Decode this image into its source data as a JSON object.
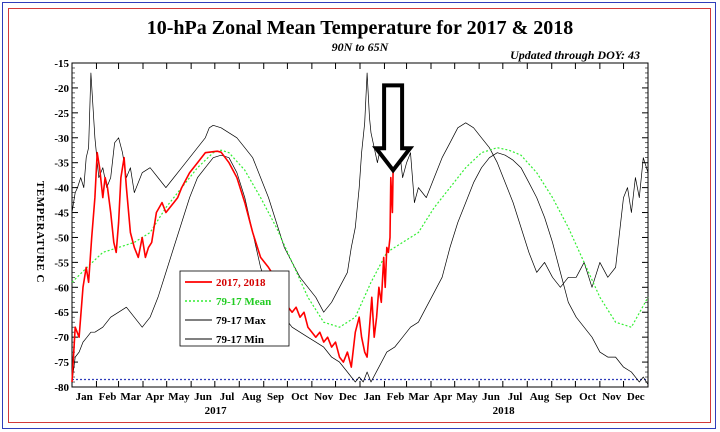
{
  "chart_data": {
    "type": "line",
    "title": "10-hPa Zonal Mean Temperature for 2017 & 2018",
    "subtitle": "90N to 65N",
    "update_note": "Updated through DOY:  43",
    "ylabel": "TEMPERATURE C",
    "ylim": [
      -80,
      -15
    ],
    "yticks": [
      -15,
      -20,
      -25,
      -30,
      -35,
      -40,
      -45,
      -50,
      -55,
      -60,
      -65,
      -70,
      -75,
      -80
    ],
    "xlim": [
      1,
      731
    ],
    "month_labels": [
      "Jan",
      "Feb",
      "Mar",
      "Apr",
      "May",
      "Jun",
      "Jul",
      "Aug",
      "Sep",
      "Oct",
      "Nov",
      "Dec",
      "Jan",
      "Feb",
      "Mar",
      "Apr",
      "May",
      "Jun",
      "Jul",
      "Aug",
      "Sep",
      "Oct",
      "Nov",
      "Dec"
    ],
    "year_labels": [
      {
        "text": "2017",
        "x": 183
      },
      {
        "text": "2018",
        "x": 548
      }
    ],
    "reference_line": -78.5,
    "annotation": {
      "shape": "down-arrow",
      "x": 408,
      "y_top": -19.5,
      "y_tip": -36.5
    },
    "legend": {
      "position": "lower-left"
    },
    "series": [
      {
        "name": "2017, 2018",
        "color": "#ff0000",
        "x": [
          1,
          5,
          10,
          15,
          19,
          22,
          26,
          30,
          33,
          36,
          40,
          43,
          46,
          50,
          54,
          57,
          60,
          63,
          67,
          70,
          75,
          80,
          85,
          90,
          94,
          98,
          102,
          108,
          115,
          120,
          125,
          130,
          135,
          140,
          150,
          160,
          170,
          180,
          185,
          190,
          200,
          210,
          220,
          230,
          240,
          250,
          258,
          265,
          270,
          275,
          280,
          285,
          290,
          295,
          300,
          305,
          310,
          315,
          320,
          325,
          330,
          335,
          340,
          345,
          350,
          355,
          360,
          365,
          368,
          372,
          375,
          378,
          381,
          384,
          387,
          390,
          393,
          396,
          398,
          400,
          402,
          404,
          405,
          407,
          408
        ],
        "y": [
          -79,
          -68,
          -70,
          -60,
          -56,
          -59,
          -50,
          -42,
          -33,
          -36,
          -42,
          -38,
          -40,
          -45,
          -51,
          -53,
          -47,
          -38,
          -34,
          -40,
          -49,
          -52,
          -54,
          -50,
          -54,
          -52,
          -51,
          -45,
          -43,
          -45,
          -44,
          -43,
          -42,
          -40,
          -37,
          -35,
          -33,
          -32.8,
          -32.7,
          -32.9,
          -35,
          -38,
          -43,
          -49,
          -54,
          -56,
          -58,
          -61,
          -62,
          -64,
          -65,
          -64,
          -66,
          -65,
          -68,
          -69,
          -70,
          -69,
          -71,
          -70,
          -72,
          -71,
          -74,
          -75,
          -73,
          -76,
          -69,
          -66,
          -70,
          -73,
          -74,
          -68,
          -62,
          -70,
          -66,
          -60,
          -63,
          -54,
          -60,
          -52,
          -53,
          -50,
          -38,
          -45,
          -36.5
        ]
      },
      {
        "name": "79-17 Mean",
        "color": "#33ee33",
        "x": [
          1,
          20,
          40,
          60,
          80,
          100,
          120,
          140,
          160,
          180,
          190,
          200,
          220,
          240,
          260,
          280,
          300,
          320,
          340,
          360,
          380,
          400,
          420,
          440,
          460,
          480,
          500,
          520,
          540,
          555,
          570,
          590,
          610,
          630,
          650,
          670,
          690,
          710,
          731
        ],
        "y": [
          -59,
          -56,
          -53,
          -52,
          -51,
          -49,
          -44,
          -40,
          -36,
          -33,
          -32.5,
          -33,
          -36.5,
          -42,
          -48,
          -55,
          -62,
          -67,
          -68,
          -66,
          -59,
          -53,
          -51,
          -49,
          -44,
          -40,
          -36,
          -33,
          -32,
          -32.5,
          -33.5,
          -37,
          -42,
          -48,
          -55,
          -62,
          -67,
          -68,
          -62
        ]
      },
      {
        "name": "79-17 Max",
        "color": "#000000",
        "x": [
          1,
          5,
          8,
          12,
          16,
          19,
          22,
          25,
          30,
          35,
          40,
          45,
          50,
          55,
          60,
          65,
          70,
          75,
          80,
          90,
          100,
          110,
          120,
          130,
          140,
          150,
          160,
          170,
          175,
          180,
          190,
          200,
          210,
          220,
          230,
          240,
          250,
          260,
          270,
          280,
          290,
          300,
          310,
          320,
          330,
          340,
          350,
          355,
          360,
          365,
          368,
          372,
          375,
          378,
          380,
          384,
          388,
          392,
          396,
          400,
          405,
          410,
          415,
          420,
          425,
          430,
          435,
          440,
          450,
          460,
          470,
          480,
          490,
          500,
          510,
          520,
          530,
          540,
          550,
          560,
          570,
          580,
          590,
          600,
          610,
          620,
          630,
          640,
          650,
          660,
          670,
          680,
          690,
          700,
          705,
          710,
          715,
          720,
          725,
          731
        ],
        "y": [
          -45,
          -41,
          -40,
          -38,
          -40,
          -34,
          -32,
          -17,
          -30,
          -38,
          -36,
          -40,
          -38,
          -31,
          -30,
          -33,
          -38,
          -36,
          -41,
          -37,
          -36,
          -38,
          -40,
          -38,
          -36,
          -34,
          -32,
          -30,
          -28,
          -27.5,
          -28,
          -29,
          -30,
          -32,
          -34,
          -38,
          -42,
          -47,
          -52,
          -55,
          -58,
          -60,
          -62,
          -65,
          -63,
          -60,
          -57,
          -52,
          -48,
          -40,
          -33,
          -27,
          -17,
          -26,
          -29,
          -32,
          -35,
          -32,
          -34,
          -30,
          -35,
          -33,
          -31,
          -38,
          -35,
          -33,
          -43,
          -40,
          -42,
          -38,
          -34,
          -31,
          -28,
          -27,
          -28,
          -30,
          -32,
          -35,
          -39,
          -43,
          -48,
          -53,
          -57,
          -55,
          -58,
          -60,
          -58,
          -58,
          -55,
          -60,
          -55,
          -58,
          -56,
          -42,
          -40,
          -45,
          -38,
          -42,
          -34,
          -37
        ]
      },
      {
        "name": "79-17 Min",
        "color": "#000000",
        "x": [
          1,
          5,
          10,
          15,
          20,
          25,
          30,
          40,
          50,
          60,
          70,
          80,
          90,
          100,
          110,
          120,
          130,
          140,
          150,
          160,
          170,
          180,
          190,
          200,
          210,
          220,
          230,
          240,
          250,
          260,
          270,
          280,
          290,
          300,
          310,
          320,
          330,
          340,
          350,
          355,
          360,
          365,
          370,
          375,
          380,
          390,
          400,
          410,
          420,
          430,
          440,
          450,
          460,
          470,
          480,
          490,
          500,
          510,
          520,
          530,
          540,
          550,
          560,
          570,
          580,
          590,
          600,
          610,
          620,
          630,
          640,
          650,
          660,
          670,
          680,
          690,
          700,
          710,
          720,
          725,
          731
        ],
        "y": [
          -79,
          -74,
          -73,
          -71,
          -70,
          -69,
          -69,
          -68,
          -66,
          -65,
          -64,
          -66,
          -68,
          -66,
          -62,
          -57,
          -52,
          -47,
          -42,
          -38,
          -36,
          -34,
          -33.5,
          -34,
          -37,
          -42,
          -49,
          -56,
          -61,
          -64,
          -66,
          -68,
          -69,
          -70,
          -71,
          -72,
          -74,
          -75,
          -77,
          -78,
          -79,
          -78,
          -79,
          -77,
          -79,
          -76,
          -73,
          -72,
          -70,
          -68,
          -67,
          -64,
          -61,
          -58,
          -52,
          -47,
          -43,
          -39,
          -36,
          -34,
          -33,
          -33.5,
          -34.5,
          -36,
          -39,
          -42,
          -46,
          -51,
          -57,
          -63,
          -66,
          -68,
          -70,
          -73,
          -74,
          -74,
          -76,
          -77,
          -79,
          -78,
          -79.5
        ]
      }
    ]
  }
}
